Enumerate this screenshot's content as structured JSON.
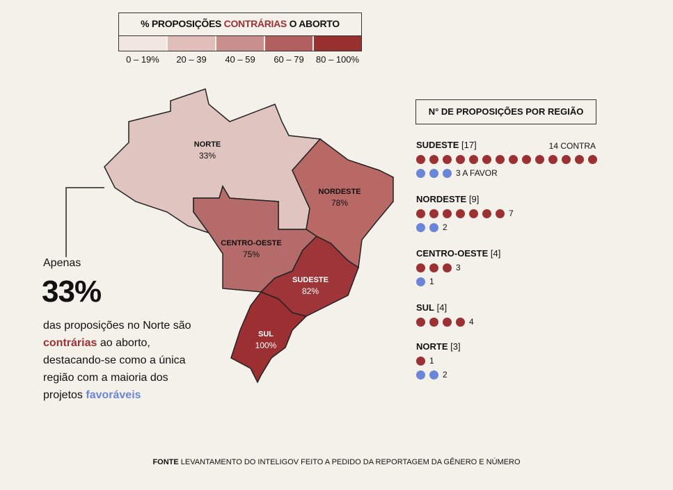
{
  "legend": {
    "title_pre": "% PROPOSIÇÕES ",
    "title_highlight": "CONTRÁRIAS",
    "title_post": " O ABORTO",
    "bins": [
      {
        "label": "0 – 19%",
        "color": "#f2e6e3"
      },
      {
        "label": "20 – 39",
        "color": "#dfbdb9"
      },
      {
        "label": "40 – 59",
        "color": "#c98f8c"
      },
      {
        "label": "60 – 79",
        "color": "#b1605f"
      },
      {
        "label": "80 – 100%",
        "color": "#98302f"
      }
    ]
  },
  "map": {
    "regions": [
      {
        "name": "NORTE",
        "value": "33%",
        "color": "#e0c4c0"
      },
      {
        "name": "NORDESTE",
        "value": "78%",
        "color": "#b86966"
      },
      {
        "name": "CENTRO-OESTE",
        "value": "75%",
        "color": "#b56b69"
      },
      {
        "name": "SUDESTE",
        "value": "82%",
        "color": "#9e3538"
      },
      {
        "name": "SUL",
        "value": "100%",
        "color": "#9b2f31"
      }
    ]
  },
  "callout": {
    "lead": "Apenas",
    "big": "33%",
    "line1": "das proposições no Norte são ",
    "highlight1": "contrárias",
    "line2": " ao aborto, destacando-se como a única região com a maioria dos projetos ",
    "highlight2": "favoráveis"
  },
  "dots": {
    "title": "N° DE PROPOSIÇÕES POR REGIÃO",
    "regions": [
      {
        "name": "SUDESTE",
        "total": "[17]",
        "contra": 14,
        "favor": 3,
        "contra_label": "14 CONTRA",
        "favor_label": "3 A FAVOR"
      },
      {
        "name": "NORDESTE",
        "total": "[9]",
        "contra": 7,
        "favor": 2,
        "contra_label": "7",
        "favor_label": "2"
      },
      {
        "name": "CENTRO-OESTE",
        "total": "[4]",
        "contra": 3,
        "favor": 1,
        "contra_label": "3",
        "favor_label": "1"
      },
      {
        "name": "SUL",
        "total": "[4]",
        "contra": 4,
        "favor": 0,
        "contra_label": "4",
        "favor_label": ""
      },
      {
        "name": "NORTE",
        "total": "[3]",
        "contra": 1,
        "favor": 2,
        "contra_label": "1",
        "favor_label": "2"
      }
    ]
  },
  "source": {
    "label": "FONTE",
    "text": " LEVANTAMENTO DO INTELIGOV FEITO A PEDIDO DA REPORTAGEM DA GÊNERO E NÚMERO"
  },
  "colors": {
    "contra": "#9b3133",
    "favor": "#6b86d6",
    "background": "#f4f1eb"
  }
}
